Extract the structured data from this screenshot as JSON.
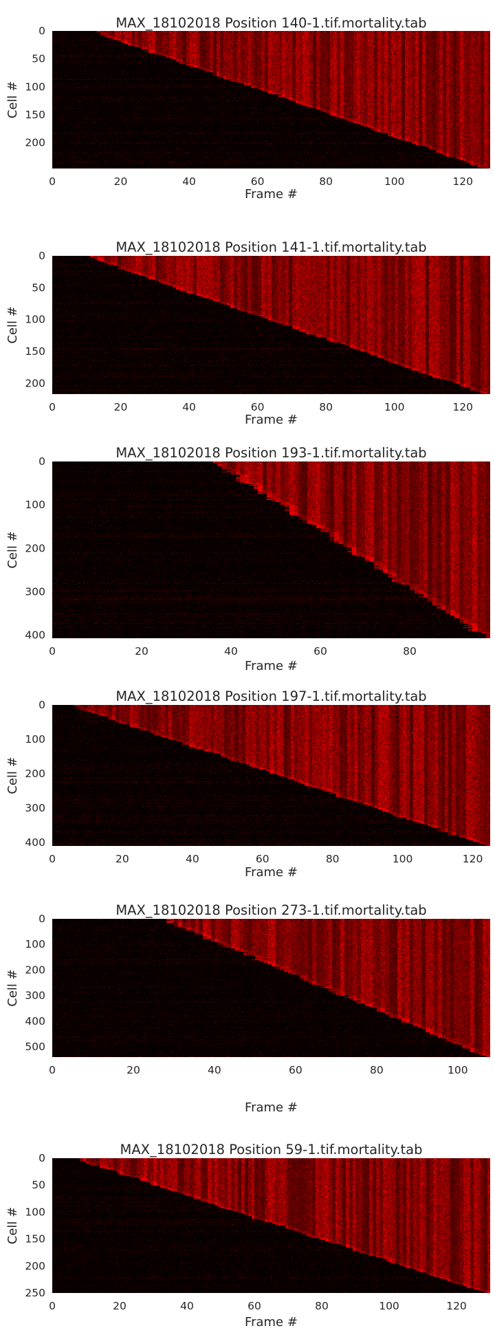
{
  "chart_data": [
    {
      "type": "heatmap",
      "title": "MAX_18102018 Position 140-1.tif.mortality.tab",
      "xlabel": "Frame #",
      "ylabel": "Cell #",
      "xlim": [
        0,
        128
      ],
      "ylim": [
        0,
        246
      ],
      "xticks": [
        0,
        20,
        40,
        60,
        80,
        100,
        120
      ],
      "yticks": [
        0,
        50,
        100,
        150,
        200
      ],
      "frames": 128,
      "cells": 246,
      "death_frame_start": 12,
      "death_frame_end": 127,
      "colormap": [
        "#000000",
        "#ff0000"
      ],
      "grid": false
    },
    {
      "type": "heatmap",
      "title": "MAX_18102018 Position 141-1.tif.mortality.tab",
      "xlabel": "Frame #",
      "ylabel": "Cell #",
      "xlim": [
        0,
        128
      ],
      "ylim": [
        0,
        217
      ],
      "xticks": [
        0,
        20,
        40,
        60,
        80,
        100,
        120
      ],
      "yticks": [
        0,
        50,
        100,
        150,
        200
      ],
      "frames": 128,
      "cells": 217,
      "death_frame_start": 10,
      "death_frame_end": 127,
      "colormap": [
        "#000000",
        "#ff0000"
      ],
      "grid": false
    },
    {
      "type": "heatmap",
      "title": "MAX_18102018 Position 193-1.tif.mortality.tab",
      "xlabel": "Frame #",
      "ylabel": "Cell #",
      "xlim": [
        0,
        98
      ],
      "ylim": [
        0,
        407
      ],
      "xticks": [
        0,
        20,
        40,
        60,
        80
      ],
      "yticks": [
        0,
        100,
        200,
        300,
        400
      ],
      "frames": 98,
      "cells": 407,
      "death_frame_start": 36,
      "death_frame_end": 97,
      "colormap": [
        "#000000",
        "#ff0000"
      ],
      "grid": false
    },
    {
      "type": "heatmap",
      "title": "MAX_18102018 Position 197-1.tif.mortality.tab",
      "xlabel": "Frame #",
      "ylabel": "Cell #",
      "xlim": [
        0,
        125
      ],
      "ylim": [
        0,
        410
      ],
      "xticks": [
        0,
        20,
        40,
        60,
        80,
        100,
        120
      ],
      "yticks": [
        0,
        100,
        200,
        300,
        400
      ],
      "frames": 125,
      "cells": 410,
      "death_frame_start": 5,
      "death_frame_end": 124,
      "colormap": [
        "#000000",
        "#ff0000"
      ],
      "grid": false
    },
    {
      "type": "heatmap",
      "title": "MAX_18102018 Position 273-1.tif.mortality.tab",
      "xlabel": "Frame #",
      "ylabel": "Cell #",
      "xlim": [
        0,
        108
      ],
      "ylim": [
        0,
        540
      ],
      "xticks": [
        0,
        20,
        40,
        60,
        80,
        100
      ],
      "yticks": [
        0,
        100,
        200,
        300,
        400,
        500
      ],
      "frames": 108,
      "cells": 540,
      "death_frame_start": 27,
      "death_frame_end": 107,
      "colormap": [
        "#000000",
        "#ff0000"
      ],
      "grid": false
    },
    {
      "type": "heatmap",
      "title": "MAX_18102018 Position 59-1.tif.mortality.tab",
      "xlabel": "Frame #",
      "ylabel": "Cell #",
      "xlim": [
        0,
        130
      ],
      "ylim": [
        0,
        250
      ],
      "xticks": [
        0,
        20,
        40,
        60,
        80,
        100,
        120
      ],
      "yticks": [
        0,
        50,
        100,
        150,
        200,
        250
      ],
      "frames": 130,
      "cells": 250,
      "death_frame_start": 7,
      "death_frame_end": 129,
      "colormap": [
        "#000000",
        "#ff0000"
      ],
      "grid": false
    }
  ]
}
